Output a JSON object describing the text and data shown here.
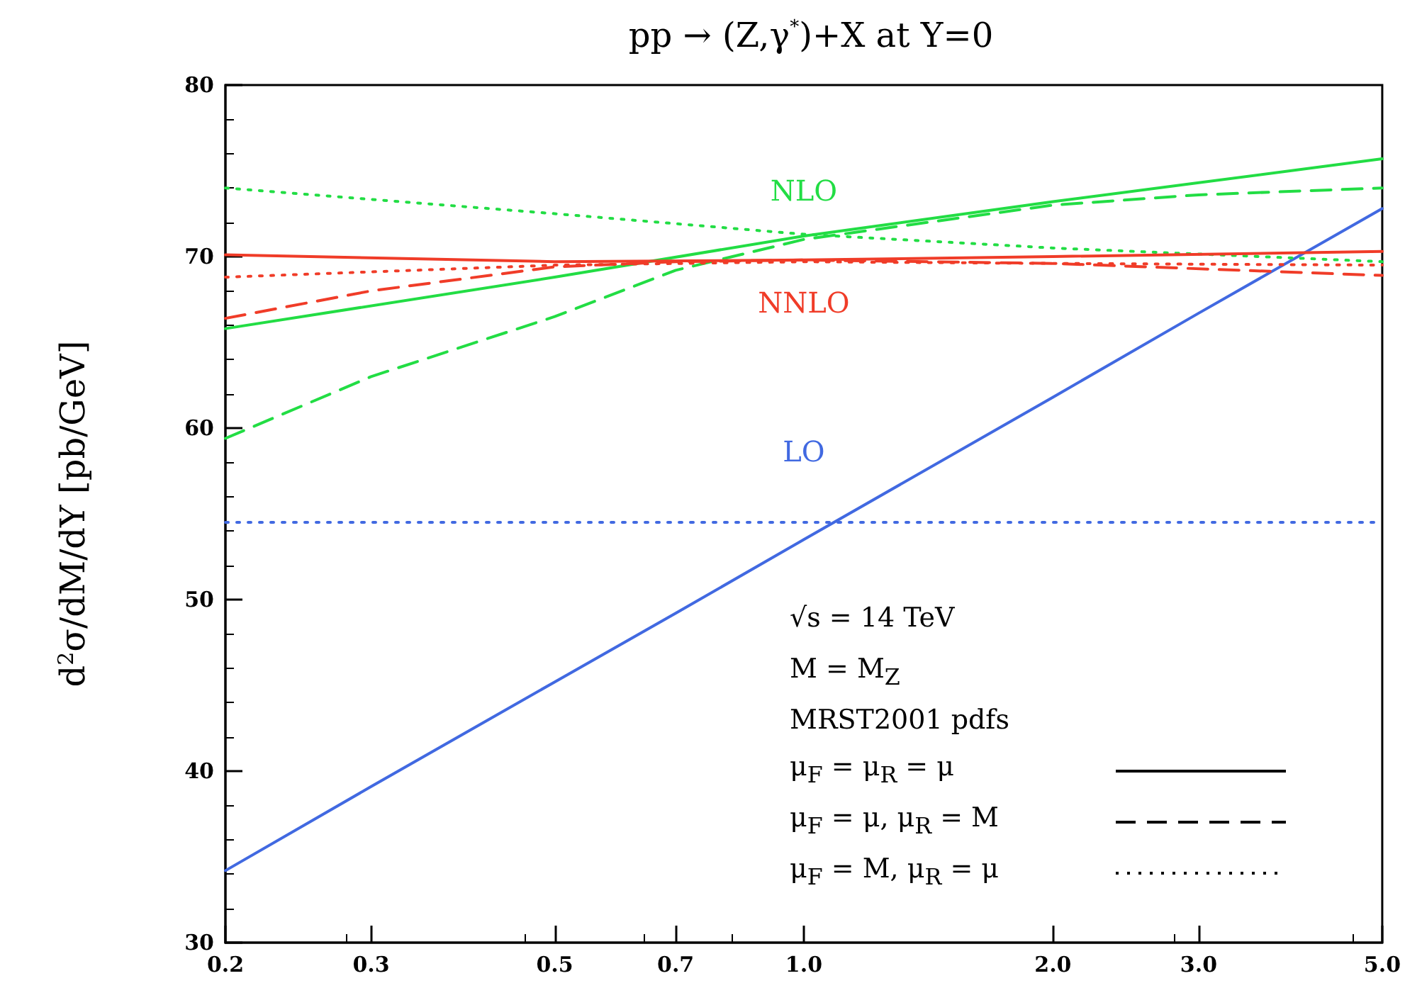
{
  "chart_data": {
    "type": "line",
    "title": "pp → (Z,γ$^{*}$)+X at Y=0",
    "ylabel": "d$^{2}$σ/dM/dY [pb/GeV]",
    "log": "x",
    "grid": false,
    "legend": false,
    "marker": "none",
    "xlim": [
      0.2,
      5.0
    ],
    "xticks": [
      {
        "value": 0.2,
        "label": "0.2"
      },
      {
        "value": 0.3,
        "label": "0.3"
      },
      {
        "value": 0.5,
        "label": "0.5"
      },
      {
        "value": 0.7,
        "label": "0.7"
      },
      {
        "value": 1.0,
        "label": "1.0"
      },
      {
        "value": 2.0,
        "label": "2.0"
      },
      {
        "value": 3.0,
        "label": "3.0"
      },
      {
        "value": 5.0,
        "label": "5.0"
      }
    ],
    "ylim": [
      30,
      80
    ],
    "yticks": [
      30,
      40,
      50,
      60,
      70,
      80
    ],
    "series": [
      {
        "name": "LO",
        "color": "#4169e1",
        "line_style": "solid",
        "x": [
          0.2,
          0.3,
          0.5,
          0.7,
          1.0,
          2.0,
          3.0,
          5.0
        ],
        "values": [
          34.2,
          39.1,
          45.2,
          49.2,
          53.5,
          61.8,
          66.7,
          72.8
        ]
      },
      {
        "color": "#22dd44",
        "line_style": "dashed",
        "x": [
          0.2,
          0.3,
          0.5,
          0.7,
          1.0,
          2.0,
          3.0,
          5.0
        ],
        "values": [
          59.4,
          63.0,
          66.5,
          69.2,
          71.0,
          73.0,
          73.6,
          74.0
        ]
      },
      {
        "color": "#4169e1",
        "line_style": "dotted",
        "x": [
          0.2,
          1.0,
          5.0
        ],
        "values": [
          54.5,
          54.5,
          54.5
        ]
      },
      {
        "name": "NLO",
        "color": "#22dd44",
        "line_style": "solid",
        "x": [
          0.2,
          0.5,
          1.0,
          2.0,
          5.0
        ],
        "values": [
          65.8,
          68.8,
          71.2,
          73.2,
          75.7
        ]
      },
      {
        "color": "#22dd44",
        "line_style": "dotted",
        "x": [
          0.2,
          0.5,
          1.0,
          2.0,
          5.0
        ],
        "values": [
          74.0,
          72.5,
          71.3,
          70.5,
          69.7
        ]
      },
      {
        "name": "NNLO",
        "color": "#f03c28",
        "line_style": "solid",
        "x": [
          0.2,
          0.5,
          1.0,
          2.0,
          5.0
        ],
        "values": [
          70.1,
          69.7,
          69.8,
          70.0,
          70.3
        ]
      },
      {
        "color": "#f03c28",
        "line_style": "dashed",
        "x": [
          0.2,
          0.3,
          0.5,
          0.7,
          1.0,
          2.0,
          5.0
        ],
        "values": [
          66.4,
          68.0,
          69.4,
          69.7,
          69.8,
          69.6,
          68.9
        ]
      },
      {
        "color": "#f03c28",
        "line_style": "dotted",
        "x": [
          0.2,
          0.5,
          1.0,
          2.0,
          5.0
        ],
        "values": [
          68.8,
          69.5,
          69.7,
          69.6,
          69.5
        ]
      }
    ],
    "annotations": [
      "√s = 14 TeV",
      "M = M$_{Z}$",
      "MRST2001 pdfs",
      "μ$_{F}$ = μ$_{R}$ = μ",
      "μ$_{F}$ = μ, μ$_{R}$ = M",
      "μ$_{F}$ = M, μ$_{R}$ = μ"
    ]
  }
}
